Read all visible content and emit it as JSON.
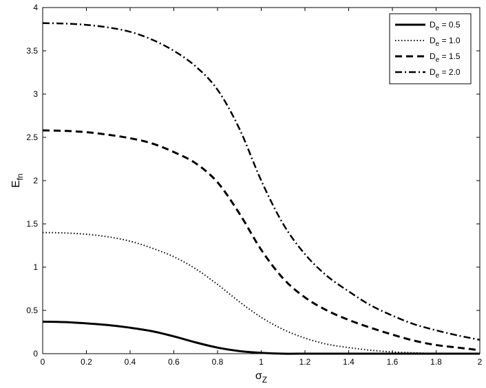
{
  "chart_data": {
    "type": "line",
    "xlabel": {
      "main": "σ",
      "sub": "Z"
    },
    "ylabel": {
      "main": "E",
      "sub": "fn"
    },
    "xlim": [
      0,
      2
    ],
    "ylim": [
      0,
      4
    ],
    "xticks": [
      "0",
      "0.2",
      "0.4",
      "0.6",
      "0.8",
      "1",
      "1.2",
      "1.4",
      "1.6",
      "1.8",
      "2"
    ],
    "yticks": [
      "0",
      "0.5",
      "1",
      "1.5",
      "2",
      "2.5",
      "3",
      "3.5",
      "4"
    ],
    "grid": false,
    "legend_position": "top-right",
    "x": [
      0,
      0.1,
      0.2,
      0.3,
      0.4,
      0.5,
      0.6,
      0.7,
      0.8,
      0.9,
      1.0,
      1.1,
      1.2,
      1.3,
      1.4,
      1.5,
      1.6,
      1.7,
      1.8,
      1.9,
      2.0
    ],
    "series": [
      {
        "label": {
          "main": "D",
          "sub": "e",
          "rest": " = 0.5"
        },
        "style": "solid",
        "values": [
          0.37,
          0.365,
          0.35,
          0.33,
          0.3,
          0.26,
          0.2,
          0.13,
          0.07,
          0.03,
          0.01,
          0.0,
          0.0,
          0.0,
          0.0,
          0.0,
          0.0,
          0.0,
          0.0,
          0.0,
          0.0
        ]
      },
      {
        "label": {
          "main": "D",
          "sub": "e",
          "rest": " = 1.0"
        },
        "style": "dotted",
        "values": [
          1.4,
          1.395,
          1.38,
          1.35,
          1.3,
          1.22,
          1.12,
          0.98,
          0.8,
          0.6,
          0.42,
          0.28,
          0.18,
          0.11,
          0.07,
          0.04,
          0.02,
          0.01,
          0.0,
          0.0,
          0.0
        ]
      },
      {
        "label": {
          "main": "D",
          "sub": "e",
          "rest": " = 1.5"
        },
        "style": "dashed",
        "values": [
          2.58,
          2.575,
          2.56,
          2.53,
          2.49,
          2.43,
          2.33,
          2.2,
          1.98,
          1.62,
          1.2,
          0.87,
          0.65,
          0.5,
          0.39,
          0.3,
          0.22,
          0.15,
          0.1,
          0.07,
          0.04
        ]
      },
      {
        "label": {
          "main": "D",
          "sub": "e",
          "rest": " = 2.0"
        },
        "style": "dashdot",
        "values": [
          3.82,
          3.815,
          3.8,
          3.77,
          3.72,
          3.63,
          3.5,
          3.32,
          3.05,
          2.6,
          2.0,
          1.5,
          1.15,
          0.9,
          0.72,
          0.56,
          0.44,
          0.34,
          0.27,
          0.21,
          0.16
        ]
      }
    ]
  }
}
